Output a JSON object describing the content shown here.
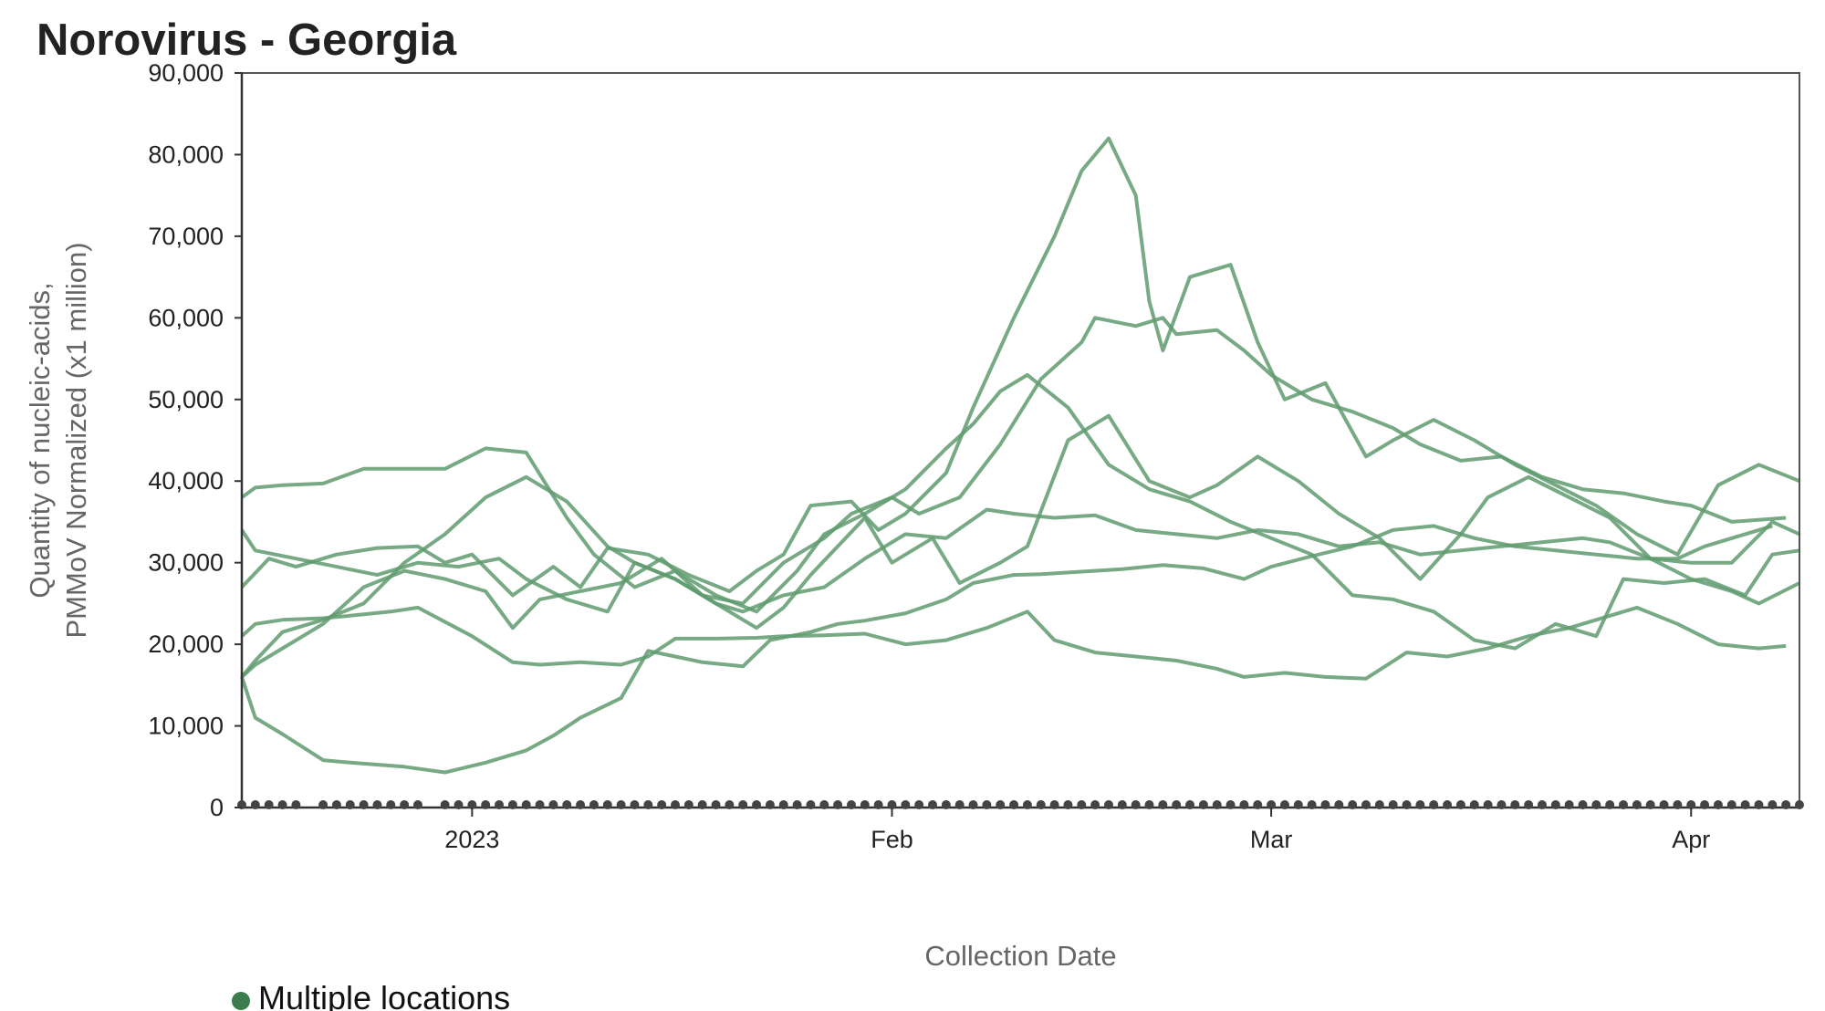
{
  "chart_data": {
    "type": "line",
    "title": "Norovirus - Georgia",
    "xlabel": "Collection Date",
    "ylabel_lines": [
      "Quantity of nucleic-acids,",
      "PMMoV Normalized (x1 million)"
    ],
    "x_domain": [
      "2022-12-15",
      "2023-04-09"
    ],
    "ylim": [
      0,
      90000
    ],
    "y_ticks": [
      0,
      10000,
      20000,
      30000,
      40000,
      50000,
      60000,
      70000,
      80000,
      90000
    ],
    "y_tick_labels": [
      "0",
      "10,000",
      "20,000",
      "30,000",
      "40,000",
      "50,000",
      "60,000",
      "70,000",
      "80,000",
      "90,000"
    ],
    "x_ticks": [
      {
        "date": "2023-01-01",
        "label": "2023"
      },
      {
        "date": "2023-02-01",
        "label": "Feb"
      },
      {
        "date": "2023-03-01",
        "label": "Mar"
      },
      {
        "date": "2023-04-01",
        "label": "Apr"
      }
    ],
    "legend": {
      "label": "Multiple locations",
      "color": "#3c7d4e",
      "position": "bottom-left"
    },
    "line_color": "#5f9b6f",
    "series": [
      {
        "x": [
          "2022-12-15",
          "2022-12-16",
          "2022-12-18",
          "2022-12-21",
          "2022-12-23",
          "2022-12-27",
          "2022-12-30",
          "2023-01-02",
          "2023-01-05",
          "2023-01-07",
          "2023-01-09",
          "2023-01-12",
          "2023-01-14",
          "2023-01-16",
          "2023-01-18",
          "2023-01-21",
          "2023-01-23",
          "2023-01-26",
          "2023-01-28",
          "2023-01-30",
          "2023-02-02",
          "2023-02-05",
          "2023-02-07",
          "2023-02-10",
          "2023-02-12",
          "2023-02-15",
          "2023-02-18",
          "2023-02-21",
          "2023-02-24",
          "2023-02-27",
          "2023-03-01",
          "2023-03-04",
          "2023-03-07",
          "2023-03-10",
          "2023-03-13",
          "2023-03-16",
          "2023-03-19",
          "2023-03-22",
          "2023-03-25",
          "2023-03-28",
          "2023-03-31",
          "2023-04-02",
          "2023-04-05",
          "2023-04-07"
        ],
        "y": [
          16000,
          11000,
          9000,
          5800,
          5500,
          5000,
          4300,
          5500,
          7000,
          8800,
          11000,
          13400,
          19200,
          18500,
          17800,
          17300,
          20500,
          21500,
          22500,
          22900,
          23800,
          25500,
          27500,
          28500,
          28600,
          28900,
          29200,
          29700,
          29300,
          28000,
          29500,
          30800,
          32000,
          34000,
          34500,
          33000,
          32000,
          31500,
          31000,
          30500,
          30500,
          32000,
          33500,
          34500
        ]
      },
      {
        "x": [
          "2022-12-15",
          "2022-12-16",
          "2022-12-18",
          "2022-12-21",
          "2022-12-23",
          "2022-12-26",
          "2022-12-28",
          "2023-01-01",
          "2023-01-04",
          "2023-01-06",
          "2023-01-09",
          "2023-01-12",
          "2023-01-14",
          "2023-01-16",
          "2023-01-19",
          "2023-01-22",
          "2023-01-24",
          "2023-01-27",
          "2023-01-30",
          "2023-02-02",
          "2023-02-05",
          "2023-02-08",
          "2023-02-11",
          "2023-02-13",
          "2023-02-16",
          "2023-02-19",
          "2023-02-22",
          "2023-02-25",
          "2023-02-27",
          "2023-03-02",
          "2023-03-05",
          "2023-03-08",
          "2023-03-11",
          "2023-03-14",
          "2023-03-17",
          "2023-03-20",
          "2023-03-23",
          "2023-03-25",
          "2023-03-28",
          "2023-03-31",
          "2023-04-03",
          "2023-04-06",
          "2023-04-08"
        ],
        "y": [
          21000,
          22500,
          23000,
          23200,
          23500,
          24000,
          24500,
          21000,
          17800,
          17500,
          17800,
          17500,
          18500,
          20700,
          20700,
          20800,
          21000,
          21100,
          21300,
          20000,
          20500,
          22000,
          24000,
          20500,
          19000,
          18500,
          18000,
          17000,
          16000,
          16500,
          16000,
          15800,
          19000,
          18500,
          19500,
          21000,
          22000,
          23000,
          24500,
          22500,
          20000,
          19500,
          19800
        ]
      },
      {
        "x": [
          "2022-12-15",
          "2022-12-16",
          "2022-12-19",
          "2022-12-22",
          "2022-12-25",
          "2022-12-28",
          "2022-12-31",
          "2023-01-03",
          "2023-01-05",
          "2023-01-08",
          "2023-01-11",
          "2023-01-13",
          "2023-01-16",
          "2023-01-19",
          "2023-01-21",
          "2023-01-24",
          "2023-01-27",
          "2023-01-30",
          "2023-02-02",
          "2023-02-05",
          "2023-02-08",
          "2023-02-10",
          "2023-02-13",
          "2023-02-16",
          "2023-02-19",
          "2023-02-22",
          "2023-02-25",
          "2023-02-28",
          "2023-03-03",
          "2023-03-06",
          "2023-03-09",
          "2023-03-12",
          "2023-03-15",
          "2023-03-18",
          "2023-03-21",
          "2023-03-24",
          "2023-03-26",
          "2023-03-29",
          "2023-04-01",
          "2023-04-04",
          "2023-04-07",
          "2023-04-09"
        ],
        "y": [
          34000,
          31500,
          30500,
          29500,
          28500,
          30000,
          29500,
          30500,
          28000,
          25500,
          24000,
          30000,
          28000,
          25000,
          24000,
          26000,
          27000,
          30500,
          33500,
          33000,
          36500,
          36000,
          35500,
          35800,
          34000,
          33500,
          33000,
          34000,
          33500,
          32000,
          32500,
          31000,
          31500,
          32000,
          32500,
          33000,
          32500,
          30500,
          30000,
          30000,
          35000,
          33500
        ]
      },
      {
        "x": [
          "2022-12-15",
          "2022-12-16",
          "2022-12-18",
          "2022-12-21",
          "2022-12-24",
          "2022-12-27",
          "2022-12-30",
          "2023-01-02",
          "2023-01-05",
          "2023-01-08",
          "2023-01-10",
          "2023-01-13",
          "2023-01-16",
          "2023-01-19",
          "2023-01-22",
          "2023-01-25",
          "2023-01-27",
          "2023-01-30",
          "2023-02-01",
          "2023-02-02",
          "2023-02-05",
          "2023-02-07",
          "2023-02-09",
          "2023-02-11",
          "2023-02-14",
          "2023-02-17",
          "2023-02-20",
          "2023-02-23",
          "2023-02-26",
          "2023-03-01",
          "2023-03-04",
          "2023-03-07",
          "2023-03-10",
          "2023-03-13",
          "2023-03-16",
          "2023-03-19",
          "2023-03-22",
          "2023-03-25",
          "2023-03-27",
          "2023-03-30",
          "2023-04-02",
          "2023-04-05",
          "2023-04-07",
          "2023-04-09"
        ],
        "y": [
          38000,
          39200,
          39500,
          39700,
          41500,
          41500,
          41500,
          44000,
          43500,
          35500,
          31000,
          27000,
          29000,
          26000,
          24000,
          29000,
          33500,
          36000,
          38000,
          39000,
          44000,
          47000,
          51000,
          53000,
          49000,
          42000,
          39000,
          37500,
          35000,
          33000,
          31000,
          26000,
          25500,
          24000,
          20500,
          19500,
          22500,
          21000,
          28000,
          27500,
          28000,
          26000,
          31000,
          31500
        ]
      },
      {
        "x": [
          "2022-12-15",
          "2022-12-16",
          "2022-12-18",
          "2022-12-21",
          "2022-12-24",
          "2022-12-27",
          "2022-12-30",
          "2023-01-02",
          "2023-01-04",
          "2023-01-06",
          "2023-01-09",
          "2023-01-12",
          "2023-01-15",
          "2023-01-18",
          "2023-01-21",
          "2023-01-24",
          "2023-01-27",
          "2023-01-29",
          "2023-02-01",
          "2023-02-03",
          "2023-02-06",
          "2023-02-09",
          "2023-02-12",
          "2023-02-15",
          "2023-02-16",
          "2023-02-19",
          "2023-02-21",
          "2023-02-22",
          "2023-02-25",
          "2023-02-27",
          "2023-03-01",
          "2023-03-04",
          "2023-03-07",
          "2023-03-10",
          "2023-03-12",
          "2023-03-15",
          "2023-03-18",
          "2023-03-21",
          "2023-03-24",
          "2023-03-27",
          "2023-03-30",
          "2023-04-01",
          "2023-04-04",
          "2023-04-08"
        ],
        "y": [
          16000,
          17500,
          19500,
          22500,
          27000,
          29000,
          28000,
          26500,
          22000,
          25500,
          26500,
          27500,
          30500,
          26000,
          25000,
          30000,
          33000,
          36000,
          38000,
          36000,
          38000,
          44500,
          52500,
          57000,
          60000,
          59000,
          60000,
          58000,
          58500,
          56000,
          53000,
          50000,
          48500,
          46500,
          44500,
          42500,
          43000,
          40500,
          39000,
          38500,
          37500,
          37000,
          35000,
          35500
        ]
      },
      {
        "x": [
          "2022-12-15",
          "2022-12-17",
          "2022-12-19",
          "2022-12-22",
          "2022-12-25",
          "2022-12-28",
          "2022-12-30",
          "2023-01-01",
          "2023-01-04",
          "2023-01-07",
          "2023-01-09",
          "2023-01-11",
          "2023-01-14",
          "2023-01-17",
          "2023-01-20",
          "2023-01-22",
          "2023-01-24",
          "2023-01-26",
          "2023-01-29",
          "2023-01-31",
          "2023-02-02",
          "2023-02-05",
          "2023-02-07",
          "2023-02-10",
          "2023-02-13",
          "2023-02-15",
          "2023-02-17",
          "2023-02-19",
          "2023-02-20",
          "2023-02-21",
          "2023-02-23",
          "2023-02-26",
          "2023-02-28",
          "2023-03-02",
          "2023-03-05",
          "2023-03-08",
          "2023-03-10",
          "2023-03-13",
          "2023-03-16",
          "2023-03-19",
          "2023-03-22",
          "2023-03-25",
          "2023-03-28",
          "2023-03-31",
          "2023-04-03",
          "2023-04-06",
          "2023-04-09"
        ],
        "y": [
          27000,
          30500,
          29500,
          31000,
          31800,
          32000,
          30000,
          31000,
          26000,
          29500,
          27000,
          31800,
          31000,
          28500,
          26500,
          29000,
          31000,
          37000,
          37500,
          34000,
          36000,
          41000,
          49000,
          60000,
          70000,
          78000,
          82000,
          75000,
          62000,
          56000,
          65000,
          66500,
          57000,
          50000,
          52000,
          43000,
          45000,
          47500,
          45000,
          42000,
          39500,
          37000,
          33500,
          31000,
          39500,
          42000,
          40000
        ]
      },
      {
        "x": [
          "2022-12-15",
          "2022-12-16",
          "2022-12-18",
          "2022-12-21",
          "2022-12-24",
          "2022-12-27",
          "2022-12-30",
          "2023-01-02",
          "2023-01-05",
          "2023-01-08",
          "2023-01-11",
          "2023-01-13",
          "2023-01-16",
          "2023-01-19",
          "2023-01-22",
          "2023-01-24",
          "2023-01-26",
          "2023-01-28",
          "2023-01-30",
          "2023-02-01",
          "2023-02-04",
          "2023-02-06",
          "2023-02-09",
          "2023-02-11",
          "2023-02-14",
          "2023-02-17",
          "2023-02-20",
          "2023-02-23",
          "2023-02-25",
          "2023-02-28",
          "2023-03-03",
          "2023-03-06",
          "2023-03-09",
          "2023-03-12",
          "2023-03-15",
          "2023-03-17",
          "2023-03-20",
          "2023-03-23",
          "2023-03-26",
          "2023-03-29",
          "2023-04-01",
          "2023-04-04",
          "2023-04-06",
          "2023-04-09"
        ],
        "y": [
          16000,
          18000,
          21500,
          23000,
          25000,
          30000,
          33500,
          38000,
          40500,
          37500,
          32000,
          30000,
          28000,
          25000,
          22000,
          24500,
          28500,
          32000,
          35500,
          30000,
          33000,
          27500,
          30000,
          32000,
          45000,
          48000,
          40000,
          38000,
          39500,
          43000,
          40000,
          36000,
          33000,
          28000,
          33500,
          38000,
          40500,
          38000,
          35500,
          30500,
          28000,
          26500,
          25000,
          27500
        ]
      }
    ]
  }
}
